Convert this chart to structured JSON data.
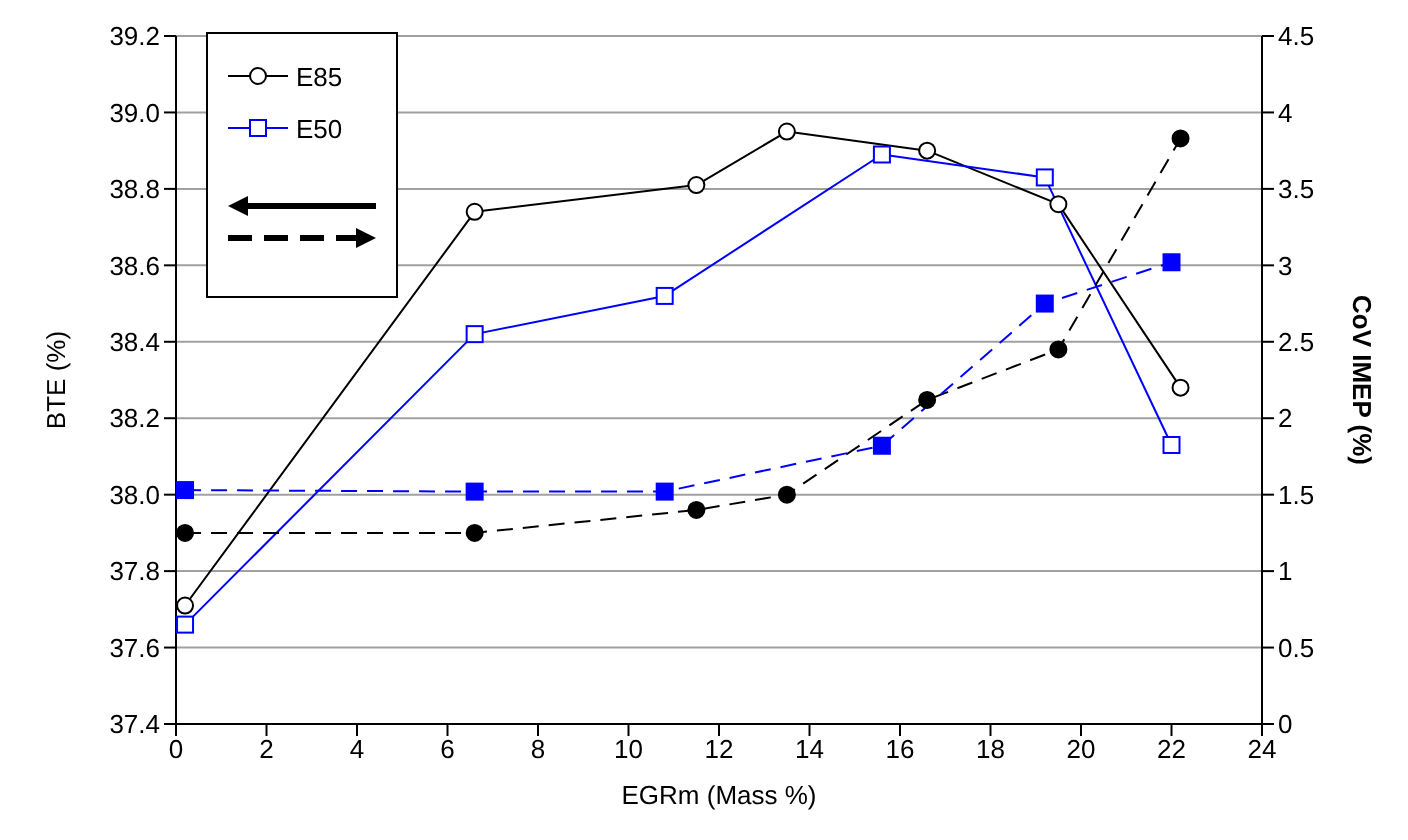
{
  "chart_data": {
    "type": "line",
    "xlabel": "EGRm (Mass %)",
    "ylabel": "BTE (%)",
    "y2label": "CoV IMEP (%)",
    "xlim": [
      0,
      24
    ],
    "xticks": [
      0,
      2,
      4,
      6,
      8,
      10,
      12,
      14,
      16,
      18,
      20,
      22,
      24
    ],
    "ylim": [
      37.4,
      39.2
    ],
    "yticks": [
      37.4,
      37.6,
      37.8,
      {
        "value": 38,
        "label": "38.0"
      },
      38.2,
      38.4,
      38.6,
      38.8,
      {
        "value": 39,
        "label": "39.0"
      },
      39.2
    ],
    "y2lim": [
      0,
      4.5
    ],
    "y2ticks": [
      0,
      0.5,
      1,
      1.5,
      2,
      2.5,
      3,
      3.5,
      4,
      4.5
    ],
    "grid": "y",
    "legend": "top left",
    "series": [
      {
        "name": "E85",
        "color": "#000000",
        "marker": "circle",
        "line_style": "solid",
        "x": [
          0.2,
          6.6,
          11.5,
          13.5,
          16.6,
          19.5,
          22.2
        ],
        "values": [
          37.71,
          38.74,
          38.81,
          38.95,
          38.9,
          38.76,
          38.28
        ]
      },
      {
        "name": "E50",
        "color": "#0000ff",
        "marker": "square",
        "line_style": "solid",
        "x": [
          0.2,
          6.6,
          10.8,
          15.6,
          19.2,
          22.0
        ],
        "values": [
          37.66,
          38.42,
          38.52,
          38.89,
          38.83,
          38.13
        ]
      },
      {
        "color": "#000000",
        "marker": "circle",
        "line_style": "dashed",
        "axis": "y2",
        "x": [
          0.2,
          6.6,
          11.5,
          13.5,
          16.6,
          19.5,
          22.2
        ],
        "values": [
          1.25,
          1.25,
          1.4,
          1.5,
          2.12,
          2.45,
          3.83
        ]
      },
      {
        "color": "#0000ff",
        "marker": "square",
        "line_style": "dashed",
        "axis": "y2",
        "x": [
          0.2,
          6.6,
          10.8,
          15.6,
          19.2,
          22.0
        ],
        "values": [
          1.53,
          1.52,
          1.52,
          1.82,
          2.75,
          3.02
        ]
      }
    ]
  }
}
